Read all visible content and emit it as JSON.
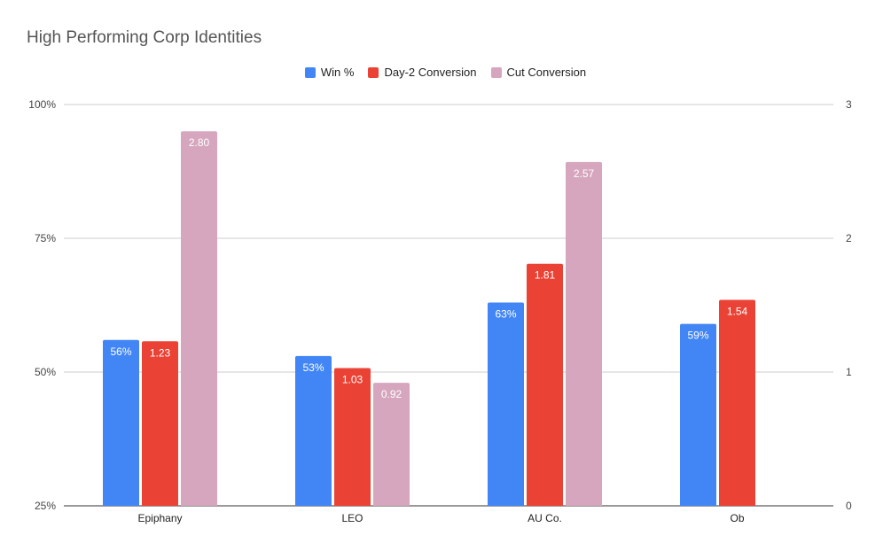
{
  "chart_data": {
    "type": "bar",
    "title": "High Performing Corp Identities",
    "categories": [
      "Epiphany",
      "LEO",
      "AU Co.",
      "Ob"
    ],
    "series": [
      {
        "name": "Win %",
        "axis": "left",
        "values": [
          0.56,
          0.53,
          0.63,
          0.59
        ],
        "labels": [
          "56%",
          "53%",
          "63%",
          "59%"
        ],
        "color": "#4285F4"
      },
      {
        "name": "Day-2 Conversion",
        "axis": "right",
        "values": [
          1.23,
          1.03,
          1.81,
          1.54
        ],
        "labels": [
          "1.23",
          "1.03",
          "1.81",
          "1.54"
        ],
        "color": "#EA4335"
      },
      {
        "name": "Cut Conversion",
        "axis": "right",
        "values": [
          2.8,
          0.92,
          2.57,
          null
        ],
        "labels": [
          "2.80",
          "0.92",
          "2.57",
          ""
        ],
        "color": "#D5A6BD"
      }
    ],
    "left_axis": {
      "ylim": [
        0.25,
        1.0
      ],
      "ticks": [
        "25%",
        "50%",
        "75%",
        "100%"
      ],
      "tick_values": [
        0.25,
        0.5,
        0.75,
        1.0
      ]
    },
    "right_axis": {
      "ylim": [
        0,
        3
      ],
      "ticks": [
        "0",
        "1",
        "2",
        "3"
      ],
      "tick_values": [
        0,
        1,
        2,
        3
      ]
    },
    "legend_position": "top",
    "grid": true
  }
}
